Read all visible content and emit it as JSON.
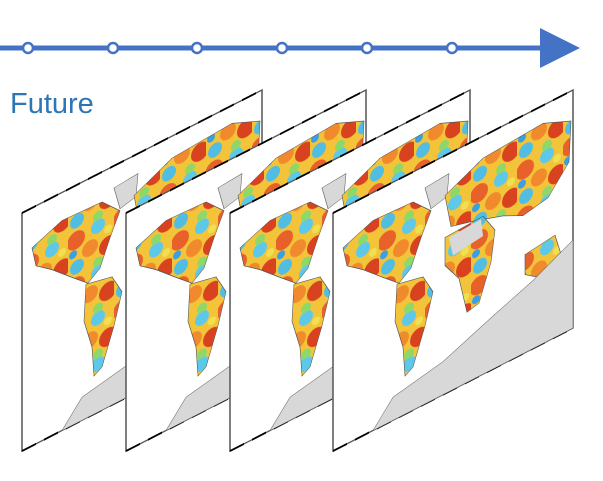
{
  "label": "Future"
}
